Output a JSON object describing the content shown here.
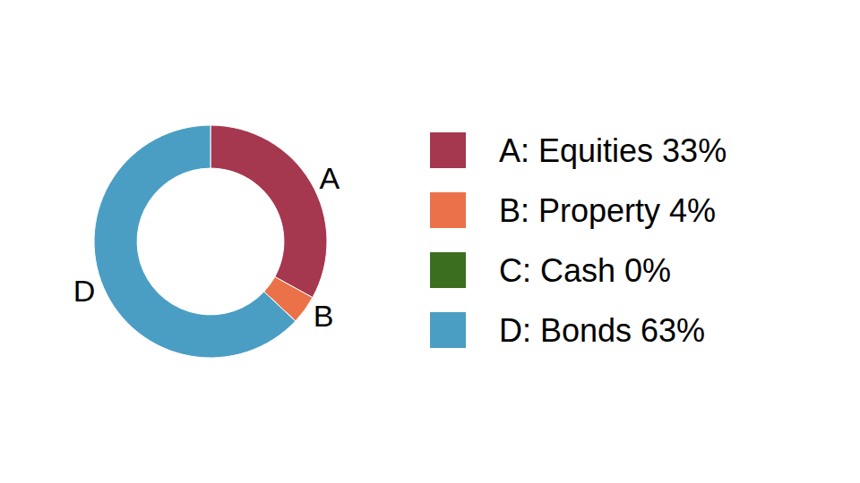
{
  "chart_data": {
    "type": "pie",
    "categories": [
      "A: Equities 33%",
      "B: Property 4%",
      "C: Cash 0%",
      "D: Bonds 63%"
    ],
    "values": [
      33,
      4,
      0,
      63
    ],
    "slice_labels": [
      "A",
      "B",
      null,
      "D"
    ],
    "colors": [
      "#a5374f",
      "#eb7149",
      "#3b6e1e",
      "#4b9ec3"
    ],
    "legend": "right"
  }
}
